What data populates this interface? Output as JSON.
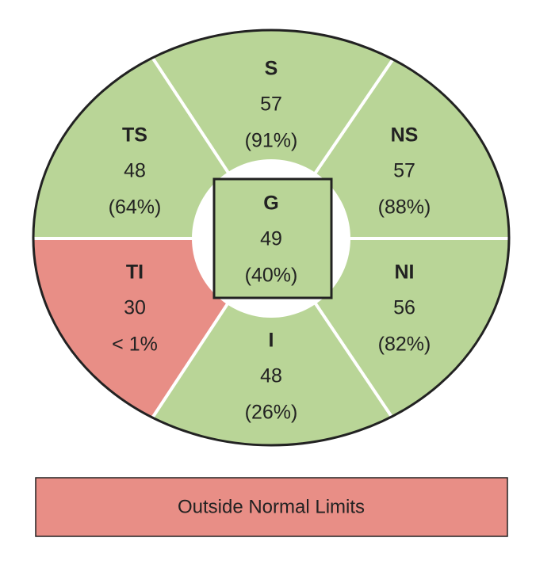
{
  "sectors": [
    {
      "label": "S",
      "value": 57,
      "percentile": "(91%)",
      "color": "#b9d597"
    },
    {
      "label": "TS",
      "value": 48,
      "percentile": "(64%)",
      "color": "#b9d597"
    },
    {
      "label": "NS",
      "value": 57,
      "percentile": "(88%)",
      "color": "#b9d597"
    },
    {
      "label": "G",
      "value": 49,
      "percentile": "(40%)",
      "color": "#b9d597"
    },
    {
      "label": "TI",
      "value": 30,
      "percentile": "< 1%",
      "color": "#e88e86"
    },
    {
      "label": "NI",
      "value": 56,
      "percentile": "(82%)",
      "color": "#b9d597"
    },
    {
      "label": "I",
      "value": 48,
      "percentile": "(26%)",
      "color": "#b9d597"
    }
  ],
  "legend": {
    "label": "Outside Normal Limits",
    "color": "#e88e86"
  }
}
